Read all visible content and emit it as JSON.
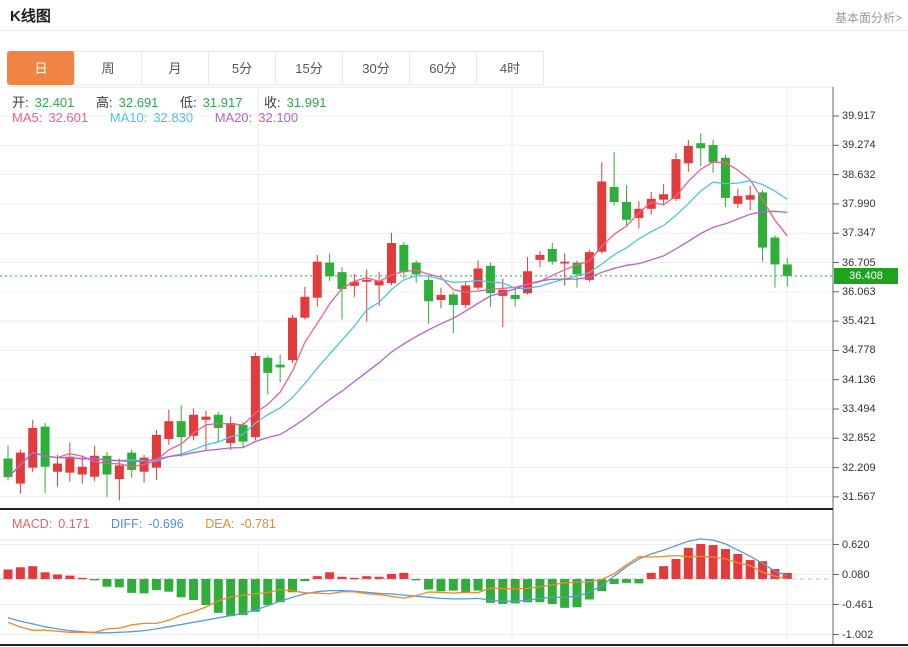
{
  "header": {
    "title": "K线图",
    "link": "基本面分析>"
  },
  "tabs": [
    {
      "key": "day",
      "label": "日",
      "active": true
    },
    {
      "key": "week",
      "label": "周",
      "active": false
    },
    {
      "key": "month",
      "label": "月",
      "active": false
    },
    {
      "key": "5min",
      "label": "5分",
      "active": false
    },
    {
      "key": "15min",
      "label": "15分",
      "active": false
    },
    {
      "key": "30min",
      "label": "30分",
      "active": false
    },
    {
      "key": "60min",
      "label": "60分",
      "active": false
    },
    {
      "key": "4hour",
      "label": "4时",
      "active": false
    }
  ],
  "legend": {
    "ohlc": [
      {
        "label": "开:",
        "value": "32.401"
      },
      {
        "label": "高:",
        "value": "32.691"
      },
      {
        "label": "低:",
        "value": "31.917"
      },
      {
        "label": "收:",
        "value": "31.991"
      }
    ],
    "ma": [
      {
        "label": "MA5:",
        "value": "32.601"
      },
      {
        "label": "MA10:",
        "value": "32.830"
      },
      {
        "label": "MA20:",
        "value": "32.100"
      }
    ],
    "macd": [
      {
        "label": "MACD:",
        "value": "0.171"
      },
      {
        "label": "DIFF:",
        "value": "-0.696"
      },
      {
        "label": "DEA:",
        "value": "-0.781"
      }
    ]
  },
  "price_axis": {
    "ticks": [
      "39.917",
      "39.274",
      "38.632",
      "37.990",
      "37.347",
      "36.705",
      "36.063",
      "35.421",
      "34.778",
      "34.136",
      "33.494",
      "32.852",
      "32.209",
      "31.567"
    ],
    "current": "36.408"
  },
  "macd_axis": {
    "ticks": [
      "0.620",
      "0.080",
      "-0.461",
      "-1.002"
    ]
  },
  "chart_data": {
    "type": "candlestick+macd",
    "title": "K线图 daily candles",
    "legend_position": "top-left",
    "grid": true,
    "price_range": [
      31.567,
      39.917
    ],
    "macd_range": [
      -1.002,
      0.62
    ],
    "current_price": 36.408,
    "ma_periods": [
      5,
      10,
      20
    ],
    "candles": [
      [
        32.401,
        32.691,
        31.917,
        31.991
      ],
      [
        31.85,
        32.6,
        31.63,
        32.53
      ],
      [
        32.2,
        33.25,
        32.1,
        33.07
      ],
      [
        33.1,
        33.18,
        31.65,
        32.22
      ],
      [
        32.11,
        32.48,
        31.78,
        32.29
      ],
      [
        32.09,
        32.75,
        31.89,
        32.44
      ],
      [
        32.05,
        32.44,
        31.85,
        32.22
      ],
      [
        32.0,
        32.68,
        31.9,
        32.46
      ],
      [
        32.46,
        32.55,
        31.56,
        32.05
      ],
      [
        31.95,
        32.4,
        31.48,
        32.25
      ],
      [
        32.53,
        32.6,
        31.98,
        32.15
      ],
      [
        32.11,
        32.48,
        31.87,
        32.42
      ],
      [
        32.2,
        33.03,
        31.93,
        32.92
      ],
      [
        32.83,
        33.47,
        32.7,
        33.22
      ],
      [
        33.22,
        33.57,
        32.44,
        32.87
      ],
      [
        32.9,
        33.5,
        32.8,
        33.36
      ],
      [
        33.25,
        33.45,
        32.59,
        33.32
      ],
      [
        33.36,
        33.42,
        32.75,
        33.07
      ],
      [
        32.74,
        33.32,
        32.59,
        33.18
      ],
      [
        33.14,
        33.2,
        32.65,
        32.77
      ],
      [
        32.87,
        34.72,
        32.8,
        34.65
      ],
      [
        34.61,
        34.66,
        33.8,
        34.28
      ],
      [
        34.46,
        34.68,
        34.07,
        34.4
      ],
      [
        34.56,
        35.55,
        34.5,
        35.49
      ],
      [
        35.49,
        36.17,
        35.45,
        35.95
      ],
      [
        35.93,
        36.87,
        35.73,
        36.72
      ],
      [
        36.7,
        36.9,
        36.3,
        36.4
      ],
      [
        36.49,
        36.6,
        35.45,
        36.12
      ],
      [
        36.19,
        36.45,
        35.95,
        36.28
      ],
      [
        36.28,
        36.55,
        35.4,
        36.32
      ],
      [
        36.2,
        36.5,
        35.75,
        36.3
      ],
      [
        36.25,
        37.35,
        36.2,
        37.13
      ],
      [
        37.09,
        37.15,
        36.35,
        36.49
      ],
      [
        36.7,
        36.75,
        36.25,
        36.44
      ],
      [
        36.32,
        36.4,
        35.35,
        35.85
      ],
      [
        35.88,
        36.15,
        35.7,
        35.99
      ],
      [
        36.0,
        36.05,
        35.15,
        35.77
      ],
      [
        35.77,
        36.3,
        35.7,
        36.2
      ],
      [
        36.15,
        36.75,
        36.1,
        36.57
      ],
      [
        36.63,
        36.7,
        35.73,
        36.03
      ],
      [
        35.97,
        36.35,
        35.28,
        36.1
      ],
      [
        35.99,
        36.15,
        35.73,
        35.9
      ],
      [
        36.03,
        36.82,
        36.0,
        36.51
      ],
      [
        36.76,
        36.95,
        36.6,
        36.87
      ],
      [
        37.0,
        37.13,
        36.65,
        36.72
      ],
      [
        36.68,
        36.9,
        36.2,
        36.72
      ],
      [
        36.7,
        36.75,
        36.15,
        36.44
      ],
      [
        36.32,
        36.98,
        36.28,
        36.93
      ],
      [
        36.94,
        38.9,
        36.9,
        38.48
      ],
      [
        38.36,
        39.13,
        37.95,
        38.03
      ],
      [
        38.03,
        38.4,
        37.5,
        37.64
      ],
      [
        37.68,
        38.05,
        37.45,
        37.88
      ],
      [
        37.88,
        38.25,
        37.75,
        38.1
      ],
      [
        38.08,
        38.42,
        37.95,
        38.2
      ],
      [
        38.1,
        39.1,
        38.05,
        38.97
      ],
      [
        38.88,
        39.39,
        38.69,
        39.26
      ],
      [
        39.32,
        39.54,
        38.82,
        39.21
      ],
      [
        39.28,
        39.4,
        38.67,
        38.9
      ],
      [
        39.0,
        39.06,
        37.92,
        38.12
      ],
      [
        37.99,
        38.32,
        37.9,
        38.16
      ],
      [
        38.08,
        38.38,
        37.85,
        38.18
      ],
      [
        38.24,
        38.3,
        36.72,
        37.03
      ],
      [
        37.25,
        37.3,
        36.15,
        36.66
      ],
      [
        36.66,
        36.8,
        36.17,
        36.408
      ]
    ],
    "macd": {
      "bars": [
        0.171,
        0.21,
        0.23,
        0.12,
        0.08,
        0.06,
        0.02,
        -0.02,
        -0.14,
        -0.15,
        -0.25,
        -0.26,
        -0.2,
        -0.23,
        -0.33,
        -0.38,
        -0.47,
        -0.61,
        -0.67,
        -0.65,
        -0.59,
        -0.47,
        -0.42,
        -0.24,
        -0.04,
        0.05,
        0.12,
        0.04,
        0.02,
        0.05,
        0.04,
        0.09,
        0.11,
        -0.02,
        -0.19,
        -0.22,
        -0.21,
        -0.24,
        -0.21,
        -0.43,
        -0.45,
        -0.44,
        -0.42,
        -0.42,
        -0.45,
        -0.52,
        -0.51,
        -0.37,
        -0.22,
        -0.09,
        -0.07,
        -0.08,
        0.11,
        0.23,
        0.36,
        0.56,
        0.63,
        0.61,
        0.54,
        0.45,
        0.34,
        0.32,
        0.18,
        0.11
      ],
      "dif": [
        -0.696,
        -0.76,
        -0.81,
        -0.86,
        -0.9,
        -0.93,
        -0.95,
        -0.97,
        -0.97,
        -0.96,
        -0.95,
        -0.93,
        -0.9,
        -0.86,
        -0.82,
        -0.78,
        -0.74,
        -0.7,
        -0.66,
        -0.62,
        -0.56,
        -0.48,
        -0.4,
        -0.33,
        -0.27,
        -0.23,
        -0.21,
        -0.21,
        -0.22,
        -0.24,
        -0.26,
        -0.27,
        -0.29,
        -0.31,
        -0.33,
        -0.35,
        -0.36,
        -0.36,
        -0.35,
        -0.38,
        -0.4,
        -0.4,
        -0.38,
        -0.35,
        -0.33,
        -0.33,
        -0.31,
        -0.24,
        -0.12,
        0.05,
        0.22,
        0.36,
        0.45,
        0.52,
        0.6,
        0.68,
        0.72,
        0.7,
        0.63,
        0.52,
        0.41,
        0.28,
        0.14,
        0.06
      ],
      "dea": [
        -0.781,
        -0.865,
        -0.925,
        -0.92,
        -0.94,
        -0.96,
        -0.96,
        -0.96,
        -0.9,
        -0.885,
        -0.825,
        -0.8,
        -0.8,
        -0.745,
        -0.655,
        -0.59,
        -0.505,
        -0.395,
        -0.325,
        -0.295,
        -0.265,
        -0.245,
        -0.19,
        -0.21,
        -0.25,
        -0.255,
        -0.27,
        -0.23,
        -0.23,
        -0.265,
        -0.28,
        -0.315,
        -0.345,
        -0.3,
        -0.235,
        -0.24,
        -0.255,
        -0.24,
        -0.245,
        -0.165,
        -0.175,
        -0.18,
        -0.17,
        -0.14,
        -0.105,
        -0.07,
        -0.055,
        -0.055,
        -0.01,
        0.095,
        0.255,
        0.4,
        0.395,
        0.405,
        0.42,
        0.4,
        0.405,
        0.395,
        0.36,
        0.295,
        0.24,
        0.12,
        0.05,
        0.005
      ]
    },
    "colors": {
      "up": "#e23b3b",
      "down": "#2fae3b",
      "ma5": "#f0608a",
      "ma10": "#4fc3e1",
      "ma20": "#b565c9",
      "dif": "#5b9bd5",
      "dea": "#ee8833",
      "current_line": "#2fa848",
      "badge": "#1fa31f",
      "tab_active": "#ef8444"
    }
  }
}
